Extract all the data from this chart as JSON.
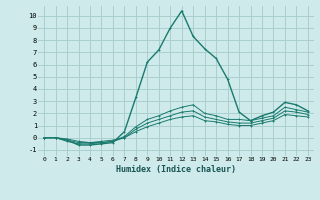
{
  "xlabel": "Humidex (Indice chaleur)",
  "background_color": "#ceeaea",
  "grid_color": "#aacfcf",
  "line_color": "#1a7a6e",
  "x_data": [
    0,
    1,
    2,
    3,
    4,
    5,
    6,
    7,
    8,
    9,
    10,
    11,
    12,
    13,
    14,
    15,
    16,
    17,
    18,
    19,
    20,
    21,
    22,
    23
  ],
  "series": [
    [
      0.0,
      0.0,
      -0.2,
      -0.6,
      -0.6,
      -0.5,
      -0.4,
      0.5,
      3.3,
      6.2,
      7.2,
      9.0,
      10.4,
      8.3,
      7.3,
      6.5,
      4.8,
      2.1,
      1.4,
      1.8,
      2.1,
      2.9,
      2.7,
      2.2
    ],
    [
      0.0,
      0.0,
      -0.3,
      -0.5,
      -0.5,
      -0.4,
      -0.3,
      0.1,
      0.9,
      1.5,
      1.8,
      2.2,
      2.5,
      2.7,
      2.0,
      1.8,
      1.5,
      1.5,
      1.4,
      1.6,
      1.8,
      2.5,
      2.3,
      2.1
    ],
    [
      0.0,
      0.0,
      -0.2,
      -0.4,
      -0.4,
      -0.4,
      -0.3,
      0.0,
      0.7,
      1.2,
      1.5,
      1.8,
      2.1,
      2.2,
      1.7,
      1.5,
      1.3,
      1.2,
      1.2,
      1.4,
      1.6,
      2.2,
      2.1,
      1.9
    ],
    [
      0.0,
      0.0,
      -0.1,
      -0.3,
      -0.4,
      -0.3,
      -0.2,
      0.0,
      0.5,
      0.9,
      1.2,
      1.5,
      1.7,
      1.8,
      1.4,
      1.3,
      1.1,
      1.0,
      1.0,
      1.2,
      1.4,
      1.9,
      1.8,
      1.7
    ]
  ],
  "xlim": [
    0,
    23
  ],
  "ylim": [
    -1.5,
    10.8
  ],
  "ytick_values": [
    -1,
    0,
    1,
    2,
    3,
    4,
    5,
    6,
    7,
    8,
    9,
    10
  ],
  "xtick_values": [
    0,
    1,
    2,
    3,
    4,
    5,
    6,
    7,
    8,
    9,
    10,
    11,
    12,
    13,
    14,
    15,
    16,
    17,
    18,
    19,
    20,
    21,
    22,
    23
  ]
}
